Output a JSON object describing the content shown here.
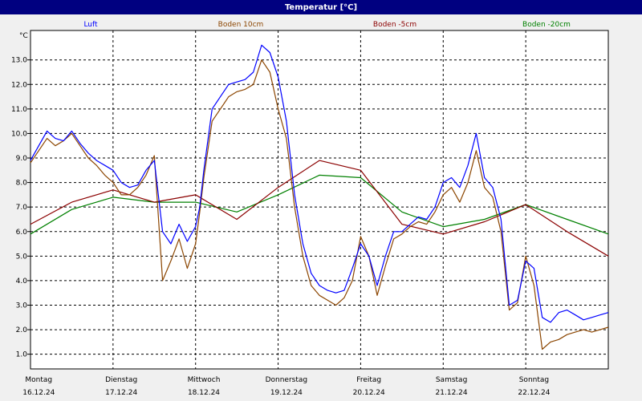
{
  "window": {
    "title": "Temperatur [°C]"
  },
  "chart_data": {
    "type": "line",
    "title": "Temperatur [°C]",
    "ylabel": "°C",
    "ylim": [
      0.4,
      14.2
    ],
    "xlim": [
      0,
      7
    ],
    "y_ticks": [
      "1.0",
      "2.0",
      "3.0",
      "4.0",
      "5.0",
      "6.0",
      "7.0",
      "8.0",
      "9.0",
      "10.0",
      "11.0",
      "12.0",
      "13.0"
    ],
    "x_ticks": [
      {
        "day": "Montag",
        "date": "16.12.24"
      },
      {
        "day": "Dienstag",
        "date": "17.12.24"
      },
      {
        "day": "Mittwoch",
        "date": "18.12.24"
      },
      {
        "day": "Donnerstag",
        "date": "19.12.24"
      },
      {
        "day": "Freitag",
        "date": "20.12.24"
      },
      {
        "day": "Samstag",
        "date": "21.12.24"
      },
      {
        "day": "Sonntag",
        "date": "22.12.24"
      }
    ],
    "grid": true,
    "legend_position": "top",
    "series": [
      {
        "name": "Luft",
        "color": "#0000ff",
        "x": [
          0,
          0.1,
          0.2,
          0.3,
          0.4,
          0.5,
          0.6,
          0.7,
          0.8,
          0.9,
          1.0,
          1.1,
          1.2,
          1.3,
          1.4,
          1.5,
          1.6,
          1.7,
          1.8,
          1.9,
          2.0,
          2.05,
          2.1,
          2.2,
          2.3,
          2.4,
          2.5,
          2.6,
          2.7,
          2.8,
          2.9,
          3.0,
          3.1,
          3.2,
          3.3,
          3.4,
          3.5,
          3.6,
          3.7,
          3.8,
          3.9,
          4.0,
          4.1,
          4.2,
          4.3,
          4.4,
          4.5,
          4.6,
          4.7,
          4.8,
          4.9,
          5.0,
          5.1,
          5.2,
          5.3,
          5.4,
          5.5,
          5.6,
          5.7,
          5.8,
          5.9,
          6.0,
          6.1,
          6.2,
          6.3,
          6.4,
          6.5,
          6.6,
          6.7,
          6.8,
          6.9,
          7.0
        ],
        "y": [
          8.9,
          9.5,
          10.1,
          9.8,
          9.7,
          10.1,
          9.6,
          9.2,
          8.9,
          8.7,
          8.5,
          8.0,
          7.8,
          7.9,
          8.5,
          8.9,
          6.0,
          5.5,
          6.3,
          5.6,
          6.2,
          7.0,
          8.5,
          11.0,
          11.5,
          12.0,
          12.1,
          12.2,
          12.5,
          13.6,
          13.3,
          12.3,
          10.5,
          7.5,
          5.5,
          4.3,
          3.8,
          3.6,
          3.5,
          3.6,
          4.5,
          5.5,
          5.0,
          3.8,
          5.0,
          6.0,
          6.0,
          6.3,
          6.6,
          6.5,
          7.0,
          8.0,
          8.2,
          7.8,
          8.7,
          10.0,
          8.2,
          7.8,
          6.5,
          3.0,
          3.2,
          4.8,
          4.5,
          2.5,
          2.3,
          2.7,
          2.8,
          2.6,
          2.4,
          2.5,
          2.6,
          2.7
        ]
      },
      {
        "name": "Boden 10cm",
        "color": "#8b4500",
        "x": [
          0,
          0.1,
          0.2,
          0.3,
          0.4,
          0.5,
          0.6,
          0.7,
          0.8,
          0.9,
          1.0,
          1.1,
          1.2,
          1.3,
          1.4,
          1.5,
          1.6,
          1.7,
          1.8,
          1.9,
          2.0,
          2.05,
          2.1,
          2.2,
          2.3,
          2.4,
          2.5,
          2.6,
          2.7,
          2.8,
          2.9,
          3.0,
          3.1,
          3.2,
          3.3,
          3.4,
          3.5,
          3.6,
          3.7,
          3.8,
          3.9,
          4.0,
          4.1,
          4.2,
          4.3,
          4.4,
          4.5,
          4.6,
          4.7,
          4.8,
          4.9,
          5.0,
          5.1,
          5.2,
          5.3,
          5.4,
          5.5,
          5.6,
          5.7,
          5.8,
          5.9,
          6.0,
          6.1,
          6.2,
          6.3,
          6.4,
          6.5,
          6.6,
          6.7,
          6.8,
          6.9,
          7.0
        ],
        "y": [
          8.8,
          9.3,
          9.8,
          9.5,
          9.7,
          10.0,
          9.5,
          9.0,
          8.7,
          8.3,
          8.0,
          7.5,
          7.5,
          7.8,
          8.3,
          9.1,
          4.0,
          4.8,
          5.7,
          4.5,
          5.5,
          6.8,
          8.2,
          10.5,
          11.0,
          11.5,
          11.7,
          11.8,
          12.0,
          13.0,
          12.5,
          11.0,
          9.8,
          7.0,
          5.0,
          3.8,
          3.4,
          3.2,
          3.0,
          3.3,
          4.0,
          5.8,
          5.0,
          3.4,
          4.6,
          5.7,
          5.9,
          6.2,
          6.4,
          6.3,
          6.8,
          7.5,
          7.8,
          7.2,
          8.0,
          9.3,
          7.8,
          7.4,
          6.0,
          2.8,
          3.1,
          5.0,
          3.8,
          1.2,
          1.5,
          1.6,
          1.8,
          1.9,
          2.0,
          1.9,
          2.0,
          2.1
        ]
      },
      {
        "name": "Boden -5cm",
        "color": "#8b0000",
        "x": [
          0,
          0.5,
          1.0,
          1.5,
          2.0,
          2.5,
          3.0,
          3.5,
          4.0,
          4.5,
          5.0,
          5.5,
          6.0,
          6.5,
          7.0
        ],
        "y": [
          6.3,
          7.2,
          7.7,
          7.2,
          7.5,
          6.5,
          7.8,
          8.9,
          8.5,
          6.3,
          5.9,
          6.4,
          7.1,
          6.0,
          5.0
        ]
      },
      {
        "name": "Boden -20cm",
        "color": "#008000",
        "x": [
          0,
          0.5,
          1.0,
          1.5,
          2.0,
          2.5,
          3.0,
          3.5,
          4.0,
          4.5,
          5.0,
          5.5,
          6.0,
          6.5,
          7.0
        ],
        "y": [
          5.9,
          6.9,
          7.4,
          7.2,
          7.2,
          6.8,
          7.5,
          8.3,
          8.2,
          6.8,
          6.2,
          6.5,
          7.1,
          6.5,
          5.9
        ]
      }
    ]
  }
}
